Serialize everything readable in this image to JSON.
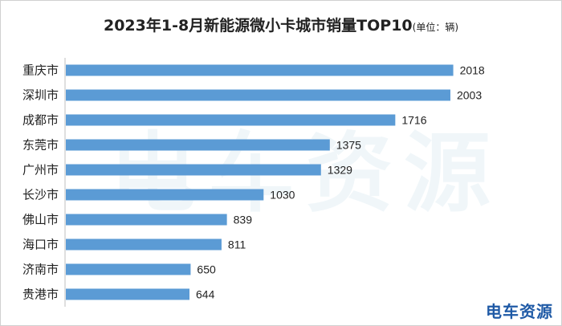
{
  "header": {
    "title": "2023年1-8月新能源微小卡城市销量TOP10",
    "unit_note": "(单位：辆)"
  },
  "watermark": {
    "text": "电车资源"
  },
  "logo": {
    "text": "电车资源"
  },
  "colors": {
    "bar": "#5b9bd5",
    "axis": "#bfbfbf",
    "text": "#222222"
  },
  "chart_data": {
    "type": "bar",
    "orientation": "horizontal",
    "title": "2023年1-8月新能源微小卡城市销量TOP10",
    "unit": "(单位：辆)",
    "categories": [
      "重庆市",
      "深圳市",
      "成都市",
      "东莞市",
      "广州市",
      "长沙市",
      "佛山市",
      "海口市",
      "济南市",
      "贵港市"
    ],
    "values": [
      2018,
      2003,
      1716,
      1375,
      1329,
      1030,
      839,
      811,
      650,
      644
    ],
    "xlim": [
      0,
      2300
    ],
    "data_labels": true,
    "grid": false,
    "legend": "none"
  }
}
